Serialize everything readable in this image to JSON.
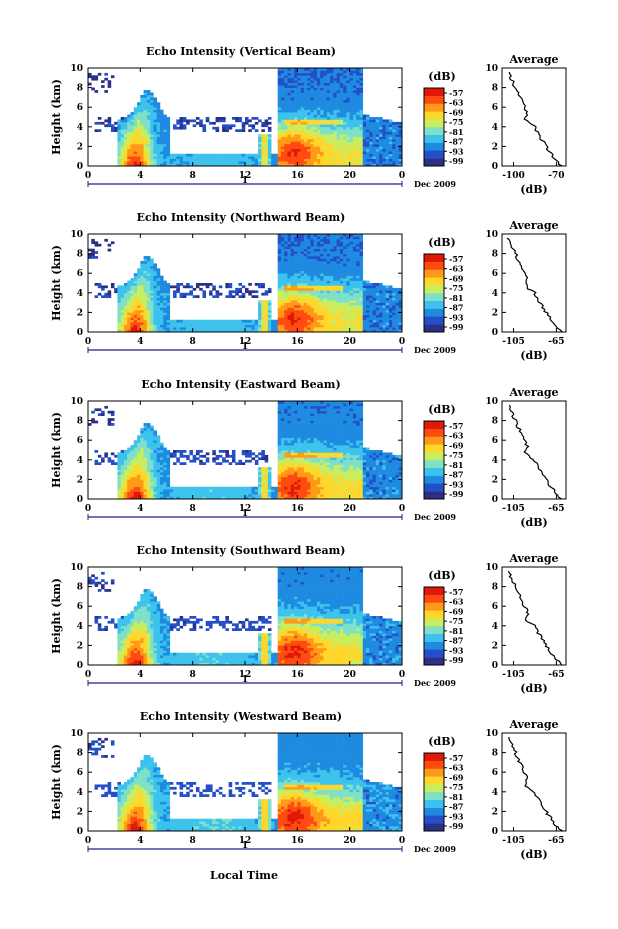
{
  "chart_data": [
    {
      "type": "heatmap",
      "title": "Echo Intensity (Vertical Beam)",
      "ylabel": "Height (km)",
      "x_ticks": [
        "0",
        "4",
        "8",
        "12",
        "16",
        "20",
        "0"
      ],
      "y_ticks": [
        "0",
        "2",
        "4",
        "6",
        "8",
        "10"
      ],
      "date_marker": "1",
      "date_label": "Dec 2009",
      "colorbar": {
        "label": "(dB)",
        "ticks": [
          "-57",
          "-63",
          "-69",
          "-75",
          "-81",
          "-87",
          "-93",
          "-99"
        ]
      },
      "average": {
        "title": "Average",
        "xlabel": "(dB)",
        "x_ticks": [
          "-100",
          "-70"
        ],
        "y_ticks": [
          "0",
          "2",
          "4",
          "6",
          "8",
          "10"
        ]
      }
    },
    {
      "type": "heatmap",
      "title": "Echo Intensity (Northward Beam)",
      "ylabel": "Height (km)",
      "x_ticks": [
        "0",
        "4",
        "8",
        "12",
        "16",
        "20",
        "0"
      ],
      "y_ticks": [
        "0",
        "2",
        "4",
        "6",
        "8",
        "10"
      ],
      "date_marker": "1",
      "date_label": "Dec 2009",
      "colorbar": {
        "label": "(dB)",
        "ticks": [
          "-57",
          "-63",
          "-69",
          "-75",
          "-81",
          "-87",
          "-93",
          "-99"
        ]
      },
      "average": {
        "title": "Average",
        "xlabel": "(dB)",
        "x_ticks": [
          "-105",
          "-65"
        ],
        "y_ticks": [
          "0",
          "2",
          "4",
          "6",
          "8",
          "10"
        ]
      }
    },
    {
      "type": "heatmap",
      "title": "Echo Intensity (Eastward Beam)",
      "ylabel": "Height (km)",
      "x_ticks": [
        "0",
        "4",
        "8",
        "12",
        "16",
        "20",
        "0"
      ],
      "y_ticks": [
        "0",
        "2",
        "4",
        "6",
        "8",
        "10"
      ],
      "date_marker": "1",
      "date_label": "Dec 2009",
      "colorbar": {
        "label": "(dB)",
        "ticks": [
          "-57",
          "-63",
          "-69",
          "-75",
          "-81",
          "-87",
          "-93",
          "-99"
        ]
      },
      "average": {
        "title": "Average",
        "xlabel": "(dB)",
        "x_ticks": [
          "-105",
          "-65"
        ],
        "y_ticks": [
          "0",
          "2",
          "4",
          "6",
          "8",
          "10"
        ]
      }
    },
    {
      "type": "heatmap",
      "title": "Echo Intensity (Southward Beam)",
      "ylabel": "Height (km)",
      "x_ticks": [
        "0",
        "4",
        "8",
        "12",
        "16",
        "20",
        "0"
      ],
      "y_ticks": [
        "0",
        "2",
        "4",
        "6",
        "8",
        "10"
      ],
      "date_marker": "1",
      "date_label": "Dec 2009",
      "colorbar": {
        "label": "(dB)",
        "ticks": [
          "-57",
          "-63",
          "-69",
          "-75",
          "-81",
          "-87",
          "-93",
          "-99"
        ]
      },
      "average": {
        "title": "Average",
        "xlabel": "(dB)",
        "x_ticks": [
          "-105",
          "-65"
        ],
        "y_ticks": [
          "0",
          "2",
          "4",
          "6",
          "8",
          "10"
        ]
      }
    },
    {
      "type": "heatmap",
      "title": "Echo Intensity (Westward Beam)",
      "ylabel": "Height (km)",
      "x_ticks": [
        "0",
        "4",
        "8",
        "12",
        "16",
        "20",
        "0"
      ],
      "y_ticks": [
        "0",
        "2",
        "4",
        "6",
        "8",
        "10"
      ],
      "date_marker": "1",
      "date_label": "Dec 2009",
      "colorbar": {
        "label": "(dB)",
        "ticks": [
          "-57",
          "-63",
          "-69",
          "-75",
          "-81",
          "-87",
          "-93",
          "-99"
        ]
      },
      "average": {
        "title": "Average",
        "xlabel": "(dB)",
        "x_ticks": [
          "-105",
          "-65"
        ],
        "y_ticks": [
          "0",
          "2",
          "4",
          "6",
          "8",
          "10"
        ]
      }
    }
  ],
  "xlabel": "Local Time",
  "colors": {
    "scale": [
      "#2b2f85",
      "#2350c8",
      "#1e8ae0",
      "#3cc2ec",
      "#7fe0c8",
      "#c8ee60",
      "#ffd62a",
      "#ff9a18",
      "#ff4a10",
      "#e01808"
    ]
  }
}
